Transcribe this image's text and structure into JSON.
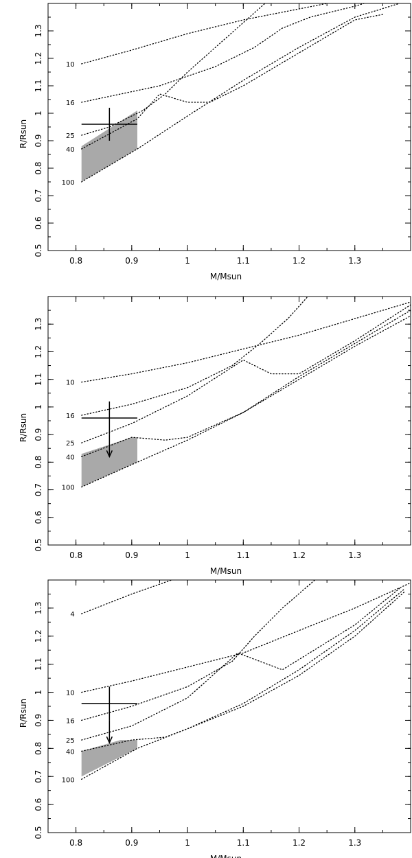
{
  "chart_data": [
    {
      "type": "line",
      "xlabel": "M/Msun",
      "ylabel": "R/Rsun",
      "xlim": [
        0.75,
        1.4
      ],
      "ylim": [
        0.5,
        1.4
      ],
      "xticks": [
        "0.8",
        "0.9",
        "1",
        "1.1",
        "1.2",
        "1.3"
      ],
      "yticks": [
        "0.5",
        "0.6",
        "0.7",
        "0.8",
        "0.9",
        "1",
        "1.1",
        "1.2",
        "1.3"
      ],
      "series": [
        {
          "name": "10",
          "x": [
            0.81,
            0.9,
            1.0,
            1.1,
            1.2,
            1.3,
            1.38
          ],
          "y": [
            1.18,
            1.23,
            1.29,
            1.34,
            1.38,
            1.42,
            1.45
          ]
        },
        {
          "name": "16",
          "x": [
            0.81,
            0.95,
            1.05,
            1.12,
            1.17,
            1.22,
            1.3,
            1.35
          ],
          "y": [
            1.04,
            1.1,
            1.17,
            1.24,
            1.31,
            1.35,
            1.39,
            1.42
          ]
        },
        {
          "name": "25",
          "x": [
            0.81,
            0.86,
            0.92,
            0.96,
            1.0,
            1.05,
            1.1,
            1.15
          ],
          "y": [
            0.92,
            0.95,
            1.01,
            1.07,
            1.15,
            1.24,
            1.33,
            1.42
          ]
        },
        {
          "name": "40",
          "x": [
            0.81,
            0.91,
            0.95,
            1.0,
            1.04,
            1.1,
            1.2,
            1.3,
            1.35
          ],
          "y": [
            0.87,
            0.98,
            1.07,
            1.04,
            1.04,
            1.1,
            1.22,
            1.34,
            1.36
          ]
        },
        {
          "name": "100",
          "x": [
            0.81,
            0.91,
            1.0,
            1.1,
            1.2,
            1.3,
            1.38
          ],
          "y": [
            0.75,
            0.87,
            0.99,
            1.12,
            1.24,
            1.35,
            1.4
          ]
        }
      ],
      "shaded_region": {
        "x": [
          0.81,
          0.91,
          0.91,
          0.81
        ],
        "y": [
          0.88,
          1.01,
          0.87,
          0.75
        ]
      },
      "measurement": {
        "x": 0.86,
        "y": 0.96,
        "x_error": 0.05,
        "y_error": 0.06,
        "upper_limit": false
      }
    },
    {
      "type": "line",
      "xlabel": "M/Msun",
      "ylabel": "R/Rsun",
      "xlim": [
        0.75,
        1.4
      ],
      "ylim": [
        0.5,
        1.4
      ],
      "xticks": [
        "0.8",
        "0.9",
        "1",
        "1.1",
        "1.2",
        "1.3"
      ],
      "yticks": [
        "0.5",
        "0.6",
        "0.7",
        "0.8",
        "0.9",
        "1",
        "1.1",
        "1.2",
        "1.3"
      ],
      "series": [
        {
          "name": "10",
          "x": [
            0.81,
            0.9,
            1.0,
            1.1,
            1.2,
            1.3,
            1.4
          ],
          "y": [
            1.09,
            1.12,
            1.16,
            1.21,
            1.26,
            1.32,
            1.38
          ]
        },
        {
          "name": "16",
          "x": [
            0.81,
            0.9,
            1.0,
            1.08,
            1.13,
            1.18,
            1.22
          ],
          "y": [
            0.97,
            1.01,
            1.07,
            1.15,
            1.23,
            1.32,
            1.41
          ]
        },
        {
          "name": "25",
          "x": [
            0.81,
            0.9,
            1.0,
            1.1,
            1.15,
            1.2,
            1.3,
            1.4
          ],
          "y": [
            0.87,
            0.94,
            1.04,
            1.17,
            1.12,
            1.12,
            1.24,
            1.37
          ]
        },
        {
          "name": "40",
          "x": [
            0.81,
            0.9,
            0.96,
            1.0,
            1.1,
            1.2,
            1.3,
            1.4
          ],
          "y": [
            0.82,
            0.89,
            0.88,
            0.89,
            0.98,
            1.11,
            1.23,
            1.35
          ]
        },
        {
          "name": "100",
          "x": [
            0.81,
            0.91,
            1.0,
            1.1,
            1.2,
            1.3,
            1.4
          ],
          "y": [
            0.71,
            0.8,
            0.88,
            0.98,
            1.1,
            1.22,
            1.33
          ]
        }
      ],
      "shaded_region": {
        "x": [
          0.81,
          0.9,
          0.91,
          0.91,
          0.81
        ],
        "y": [
          0.83,
          0.89,
          0.89,
          0.8,
          0.71
        ]
      },
      "measurement": {
        "x": 0.86,
        "y": 0.96,
        "x_error": 0.05,
        "y_error": 0.06,
        "upper_limit": true
      }
    },
    {
      "type": "line",
      "xlabel": "M/Msun",
      "ylabel": "R/Rsun",
      "xlim": [
        0.75,
        1.4
      ],
      "ylim": [
        0.5,
        1.4
      ],
      "xticks": [
        "0.8",
        "0.9",
        "1",
        "1.1",
        "1.2",
        "1.3"
      ],
      "yticks": [
        "0.5",
        "0.6",
        "0.7",
        "0.8",
        "0.9",
        "1",
        "1.1",
        "1.2",
        "1.3"
      ],
      "series": [
        {
          "name": "4",
          "x": [
            0.81,
            0.9,
            1.0
          ],
          "y": [
            1.28,
            1.35,
            1.42
          ]
        },
        {
          "name": "10",
          "x": [
            0.81,
            0.9,
            1.0,
            1.1,
            1.2,
            1.3,
            1.4
          ],
          "y": [
            1.0,
            1.04,
            1.09,
            1.14,
            1.22,
            1.3,
            1.39
          ]
        },
        {
          "name": "16",
          "x": [
            0.81,
            0.9,
            1.0,
            1.08,
            1.12,
            1.17,
            1.24
          ],
          "y": [
            0.9,
            0.95,
            1.02,
            1.11,
            1.2,
            1.3,
            1.42
          ]
        },
        {
          "name": "25",
          "x": [
            0.81,
            0.9,
            1.0,
            1.09,
            1.17,
            1.3,
            1.38
          ],
          "y": [
            0.83,
            0.88,
            0.98,
            1.14,
            1.08,
            1.24,
            1.37
          ]
        },
        {
          "name": "40",
          "x": [
            0.81,
            0.9,
            0.96,
            1.0,
            1.1,
            1.2,
            1.3,
            1.39
          ],
          "y": [
            0.79,
            0.83,
            0.84,
            0.87,
            0.96,
            1.08,
            1.22,
            1.37
          ]
        },
        {
          "name": "100",
          "x": [
            0.81,
            0.91,
            1.0,
            1.1,
            1.2,
            1.3,
            1.39
          ],
          "y": [
            0.69,
            0.8,
            0.87,
            0.95,
            1.06,
            1.2,
            1.36
          ]
        }
      ],
      "shaded_region": {
        "x": [
          0.81,
          0.88,
          0.91,
          0.91,
          0.81
        ],
        "y": [
          0.79,
          0.83,
          0.83,
          0.8,
          0.7
        ]
      },
      "measurement": {
        "x": 0.86,
        "y": 0.96,
        "x_error": 0.05,
        "y_error": 0.06,
        "upper_limit": true
      }
    }
  ]
}
